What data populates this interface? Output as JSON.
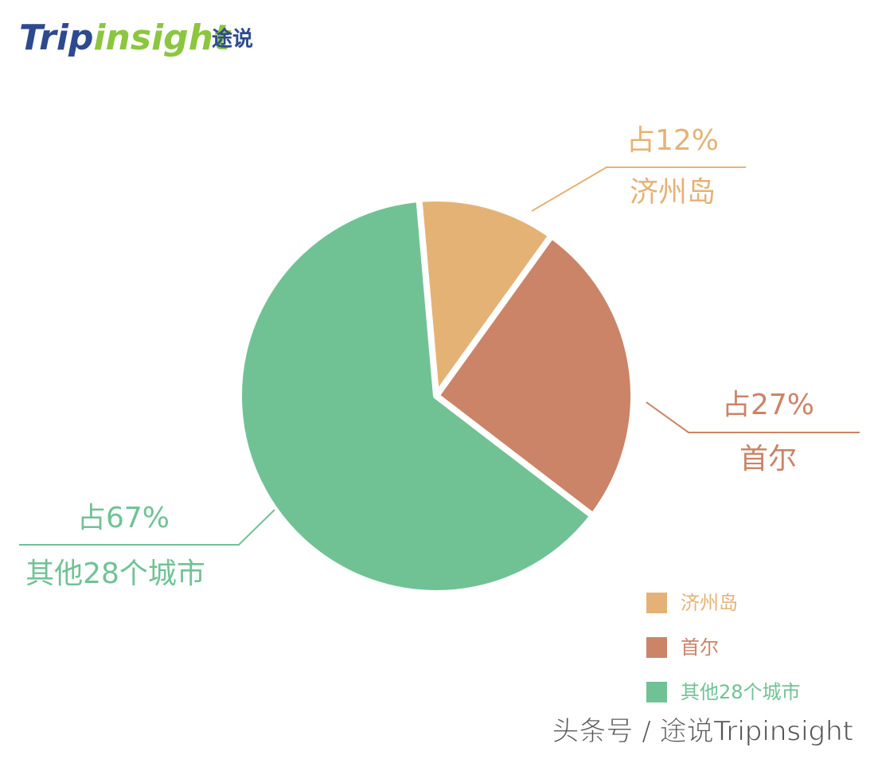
{
  "chart_data": {
    "type": "pie",
    "categories": [
      "济州岛",
      "首尔",
      "其他28个城市"
    ],
    "values": [
      12,
      27,
      67
    ],
    "value_labels": [
      "占12%",
      "占27%",
      "占67%"
    ],
    "colors": [
      "#e5b276",
      "#cb8467",
      "#70c295"
    ],
    "legend": "bottom-right"
  },
  "logo": {
    "trip": "Trip",
    "insight": "insight",
    "cn": "途说"
  },
  "watermark": "头条号 / 途说Tripinsight"
}
